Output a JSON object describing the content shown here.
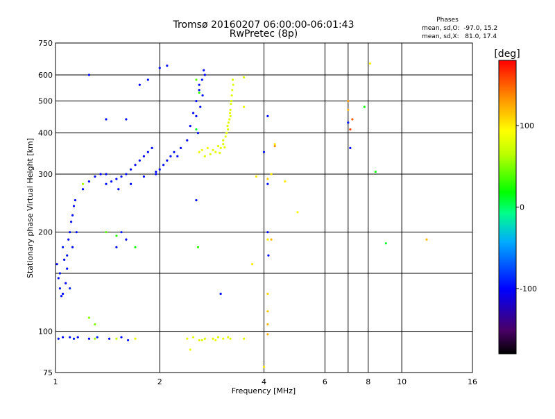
{
  "chart_data": {
    "type": "scatter",
    "title": "Tromsø 20160207 06:00:00-06:01:43",
    "subtitle": "RwPretec (8p)",
    "xlabel": "Frequency [MHz]",
    "ylabel": "Stationary phase Virtual Height [km]",
    "x_scale": "log",
    "y_scale": "log",
    "xlim": [
      1,
      16
    ],
    "ylim": [
      75,
      750
    ],
    "x_ticks": [
      1,
      2,
      4,
      6,
      8,
      10,
      16
    ],
    "y_ticks": [
      75,
      100,
      200,
      300,
      400,
      500,
      600,
      750
    ],
    "x_grid": [
      1,
      2,
      4,
      6,
      7,
      8,
      10,
      16
    ],
    "y_grid": [
      100,
      150,
      200,
      300,
      400,
      500,
      600
    ],
    "grid": true,
    "stats": {
      "title": "Phases",
      "line_o": "mean, sd,O:  -97.0, 15.2",
      "line_x": "mean, sd,X:   81.0, 17.4"
    },
    "colorbar": {
      "label": "[deg]",
      "range": [
        -180,
        180
      ],
      "ticks": [
        100,
        0,
        -100
      ],
      "placement": "right"
    },
    "series": [
      {
        "points": [
          [
            1.02,
            95,
            -95
          ],
          [
            1.05,
            96,
            -97
          ],
          [
            1.1,
            96,
            -95
          ],
          [
            1.13,
            95,
            -92
          ],
          [
            1.16,
            96,
            -100
          ],
          [
            1.25,
            95,
            -98
          ],
          [
            1.32,
            96,
            -90
          ],
          [
            1.43,
            95,
            -96
          ],
          [
            1.55,
            96,
            -98
          ],
          [
            1.62,
            94,
            -95
          ],
          [
            1.01,
            160,
            -100
          ],
          [
            1.03,
            150,
            -95
          ],
          [
            1.05,
            130,
            -98
          ],
          [
            1.07,
            140,
            -100
          ],
          [
            1.08,
            170,
            -95
          ],
          [
            1.1,
            200,
            -96
          ],
          [
            1.12,
            225,
            -98
          ],
          [
            1.14,
            250,
            -100
          ],
          [
            1.05,
            180,
            -92
          ],
          [
            1.02,
            145,
            -97
          ],
          [
            1.03,
            135,
            -95
          ],
          [
            1.09,
            190,
            -99
          ],
          [
            1.11,
            215,
            -97
          ],
          [
            1.04,
            128,
            -96
          ],
          [
            1.06,
            165,
            -100
          ],
          [
            1.13,
            240,
            -98
          ],
          [
            1.08,
            155,
            -95
          ],
          [
            1.1,
            135,
            -90
          ],
          [
            1.12,
            180,
            -98
          ],
          [
            1.15,
            200,
            -95
          ],
          [
            1.2,
            270,
            -98
          ],
          [
            1.25,
            285,
            -100
          ],
          [
            1.3,
            295,
            -97
          ],
          [
            1.35,
            300,
            -99
          ],
          [
            1.4,
            280,
            -95
          ],
          [
            1.45,
            285,
            -98
          ],
          [
            1.5,
            290,
            -100
          ],
          [
            1.55,
            295,
            -96
          ],
          [
            1.6,
            300,
            -97
          ],
          [
            1.65,
            310,
            -98
          ],
          [
            1.7,
            320,
            -99
          ],
          [
            1.75,
            330,
            -95
          ],
          [
            1.8,
            340,
            -100
          ],
          [
            1.85,
            350,
            -97
          ],
          [
            1.9,
            360,
            -98
          ],
          [
            1.95,
            300,
            -96
          ],
          [
            2.0,
            310,
            -99
          ],
          [
            2.05,
            320,
            -97
          ],
          [
            2.1,
            330,
            -98
          ],
          [
            2.15,
            340,
            -95
          ],
          [
            2.2,
            350,
            -97
          ],
          [
            2.3,
            360,
            -99
          ],
          [
            2.4,
            380,
            -100
          ],
          [
            2.45,
            420,
            -98
          ],
          [
            2.5,
            460,
            -96
          ],
          [
            2.55,
            500,
            -97
          ],
          [
            2.6,
            540,
            -98
          ],
          [
            2.65,
            580,
            -95
          ],
          [
            2.68,
            620,
            -97
          ],
          [
            2.7,
            600,
            -99
          ],
          [
            2.6,
            560,
            -96
          ],
          [
            2.55,
            450,
            -100
          ],
          [
            2.58,
            400,
            -98
          ],
          [
            2.62,
            480,
            -95
          ],
          [
            2.66,
            520,
            -97
          ],
          [
            1.4,
            440,
            -95
          ],
          [
            1.6,
            440,
            -97
          ],
          [
            1.75,
            560,
            -99
          ],
          [
            1.85,
            580,
            -96
          ],
          [
            2.0,
            630,
            -98
          ],
          [
            2.1,
            640,
            -95
          ],
          [
            1.5,
            180,
            -96
          ],
          [
            1.6,
            190,
            -98
          ],
          [
            1.55,
            200,
            -95
          ],
          [
            1.4,
            300,
            -97
          ],
          [
            1.52,
            270,
            -99
          ],
          [
            1.65,
            280,
            -98
          ],
          [
            1.8,
            295,
            -96
          ],
          [
            1.95,
            305,
            -97
          ],
          [
            2.25,
            340,
            -100
          ],
          [
            2.55,
            250,
            -98
          ],
          [
            3.0,
            130,
            -97
          ],
          [
            4.1,
            200,
            -98
          ],
          [
            4.12,
            170,
            -96
          ],
          [
            7.0,
            430,
            -95
          ],
          [
            7.1,
            360,
            -97
          ],
          [
            1.25,
            600,
            -96
          ],
          [
            4.1,
            450,
            -95
          ],
          [
            4.0,
            350,
            -98
          ],
          [
            4.1,
            280,
            -97
          ]
        ]
      },
      {
        "points": [
          [
            2.6,
            350,
            85
          ],
          [
            2.7,
            340,
            82
          ],
          [
            2.8,
            345,
            80
          ],
          [
            2.9,
            350,
            83
          ],
          [
            3.0,
            360,
            81
          ],
          [
            3.05,
            370,
            79
          ],
          [
            3.1,
            390,
            82
          ],
          [
            3.15,
            410,
            80
          ],
          [
            3.18,
            440,
            84
          ],
          [
            3.2,
            470,
            81
          ],
          [
            3.22,
            500,
            78
          ],
          [
            3.24,
            540,
            80
          ],
          [
            3.25,
            580,
            77
          ],
          [
            2.75,
            360,
            86
          ],
          [
            2.85,
            355,
            84
          ],
          [
            2.95,
            365,
            82
          ],
          [
            3.05,
            380,
            80
          ],
          [
            3.12,
            400,
            83
          ],
          [
            3.16,
            430,
            81
          ],
          [
            3.19,
            460,
            85
          ],
          [
            3.21,
            490,
            79
          ],
          [
            3.23,
            520,
            82
          ],
          [
            3.26,
            560,
            80
          ],
          [
            2.65,
            355,
            88
          ],
          [
            2.98,
            348,
            82
          ],
          [
            3.08,
            362,
            84
          ],
          [
            3.14,
            420,
            81
          ],
          [
            3.2,
            450,
            79
          ],
          [
            2.55,
            580,
            40
          ],
          [
            2.6,
            530,
            30
          ],
          [
            2.4,
            95,
            85
          ],
          [
            2.5,
            96,
            82
          ],
          [
            2.6,
            94,
            84
          ],
          [
            2.7,
            95,
            80
          ],
          [
            2.85,
            95,
            83
          ],
          [
            2.95,
            96,
            81
          ],
          [
            3.05,
            95,
            84
          ],
          [
            3.15,
            96,
            82
          ],
          [
            3.2,
            95,
            80
          ],
          [
            3.5,
            95,
            83
          ],
          [
            2.45,
            88,
            88
          ],
          [
            2.65,
            94,
            78
          ],
          [
            2.9,
            94,
            86
          ],
          [
            1.3,
            95,
            60
          ],
          [
            1.7,
            95,
            85
          ],
          [
            1.5,
            95,
            70
          ],
          [
            1.4,
            200,
            40
          ],
          [
            1.5,
            195,
            30
          ],
          [
            1.7,
            180,
            20
          ],
          [
            1.2,
            280,
            60
          ],
          [
            3.5,
            590,
            80
          ],
          [
            3.5,
            480,
            85
          ],
          [
            3.8,
            295,
            100
          ],
          [
            3.7,
            160,
            100
          ],
          [
            4.1,
            290,
            110
          ],
          [
            4.2,
            300,
            100
          ],
          [
            4.3,
            370,
            100
          ],
          [
            4.1,
            190,
            100
          ],
          [
            4.1,
            130,
            110
          ],
          [
            4.1,
            115,
            115
          ],
          [
            4.1,
            105,
            120
          ],
          [
            4.1,
            98,
            120
          ],
          [
            4.0,
            78,
            100
          ],
          [
            7.0,
            500,
            130
          ],
          [
            7.0,
            470,
            120
          ],
          [
            7.1,
            410,
            160
          ],
          [
            7.2,
            440,
            150
          ],
          [
            7.8,
            480,
            20
          ],
          [
            8.1,
            650,
            90
          ],
          [
            8.4,
            305,
            20
          ],
          [
            9.0,
            185,
            10
          ],
          [
            11.8,
            190,
            120
          ],
          [
            4.6,
            285,
            100
          ],
          [
            2.55,
            410,
            10
          ],
          [
            2.58,
            180,
            30
          ],
          [
            5.0,
            230,
            90
          ],
          [
            1.25,
            110,
            50
          ],
          [
            1.3,
            105,
            50
          ],
          [
            4.2,
            190,
            120
          ],
          [
            4.3,
            365,
            130
          ]
        ]
      }
    ]
  }
}
